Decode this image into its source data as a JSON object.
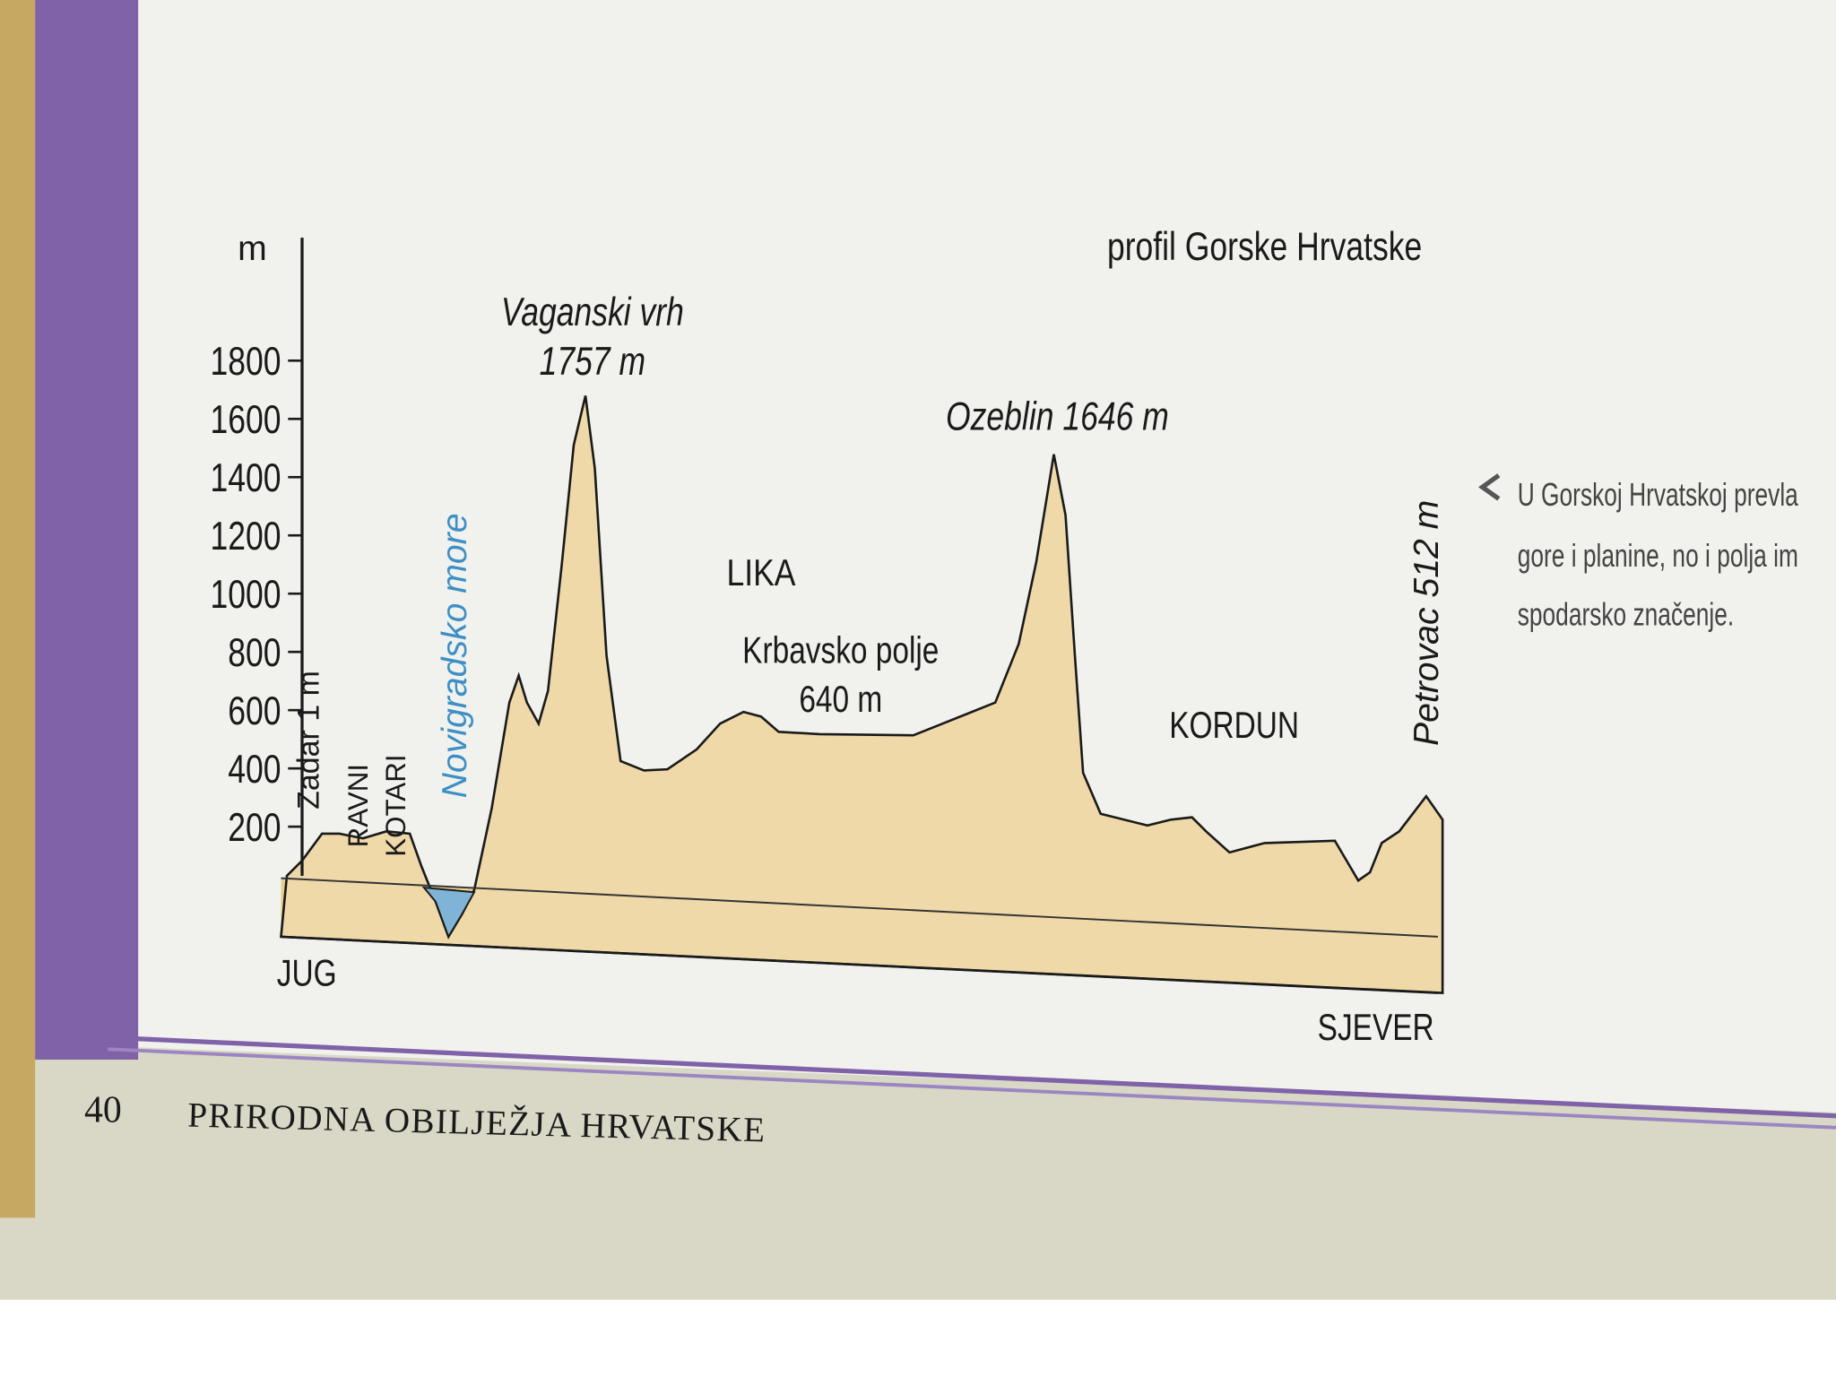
{
  "diagram": {
    "title": "profil Gorske Hrvatske",
    "axis_unit": "m",
    "yticks": [
      "1800",
      "1600",
      "1400",
      "1200",
      "1000",
      "800",
      "600",
      "400",
      "200"
    ],
    "peaks": [
      {
        "name": "Vaganski vrh",
        "height": "1757 m"
      },
      {
        "label": "Ozeblin 1646 m"
      },
      {
        "label": "Petrovac 512 m"
      },
      {
        "label": "Zadar 1 m"
      }
    ],
    "regions": {
      "lika": "LIKA",
      "krbava": "Krbavsko polje",
      "krbava_height": "640 m",
      "kordun": "KORDUN",
      "ravni": "RAVNI",
      "kotari": "KOTARI",
      "sea": "Novigradsko more"
    },
    "directions": {
      "south": "JUG",
      "north": "SJEVER"
    },
    "caption": [
      "U Gorskoj Hrvatskoj prevla",
      "gore i planine, no i polja im",
      "spodarsko značenje."
    ],
    "footer": {
      "page": "40",
      "chapter": "PRIRODNA OBILJEŽJA HRVATSKE"
    }
  }
}
